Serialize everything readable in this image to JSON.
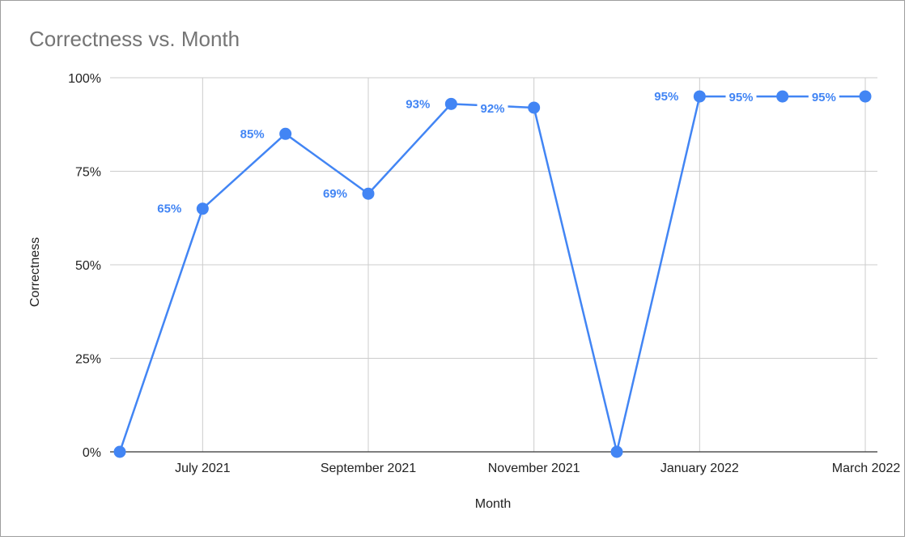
{
  "chart_data": {
    "type": "line",
    "title": "Correctness vs. Month",
    "xlabel": "Month",
    "ylabel": "Correctness",
    "x": [
      "2021-06",
      "2021-07",
      "2021-08",
      "2021-09",
      "2021-10",
      "2021-11",
      "2021-12",
      "2022-01",
      "2022-02",
      "2022-03"
    ],
    "x_ticks": [
      "2021-07",
      "2021-09",
      "2021-11",
      "2022-01",
      "2022-03"
    ],
    "x_tick_labels": [
      "July 2021",
      "September 2021",
      "November 2021",
      "January 2022",
      "March 2022"
    ],
    "y_ticks": [
      0,
      25,
      50,
      75,
      100
    ],
    "y_tick_labels": [
      "0%",
      "25%",
      "50%",
      "75%",
      "100%"
    ],
    "ylim": [
      0,
      100
    ],
    "grid": true,
    "legend": "none",
    "series": [
      {
        "values": [
          0,
          65,
          85,
          69,
          93,
          92,
          0,
          95,
          95,
          95
        ],
        "data_labels": [
          "",
          "65%",
          "85%",
          "69%",
          "93%",
          "92%",
          "",
          "95%",
          "95%",
          "95%"
        ],
        "color": "#4285f4"
      }
    ],
    "colors": {
      "series": "#4285f4",
      "grid": "#cccccc",
      "axis": "#333333",
      "title": "#757575",
      "text": "#222222",
      "frame": "#9e9e9e"
    }
  }
}
